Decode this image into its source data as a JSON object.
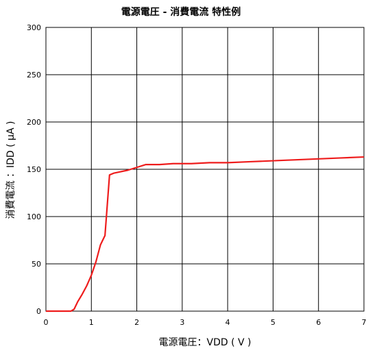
{
  "chart_data": {
    "type": "line",
    "title": "電源電圧 - 消費電流 特性例",
    "xlabel": "電源電圧：VDD ( V )",
    "ylabel": "消費電流 ：IDD ( μA )",
    "xlim": [
      0,
      7
    ],
    "ylim": [
      0,
      300
    ],
    "xticks": [
      "0",
      "1",
      "2",
      "3",
      "4",
      "5",
      "6",
      "7"
    ],
    "yticks": [
      "0",
      "50",
      "100",
      "150",
      "200",
      "250",
      "300"
    ],
    "grid": true,
    "series": [
      {
        "color": "#ee1c1c",
        "x": [
          0,
          0.55,
          0.62,
          0.7,
          0.8,
          0.9,
          1.0,
          1.1,
          1.2,
          1.3,
          1.4,
          1.5,
          1.6,
          1.8,
          2.0,
          2.2,
          2.5,
          2.8,
          3.2,
          3.6,
          4.0,
          4.5,
          5.0,
          5.5,
          6.0,
          6.5,
          7.0
        ],
        "y": [
          0,
          0,
          2,
          10,
          18,
          27,
          38,
          52,
          70,
          80,
          144,
          146,
          147,
          149,
          152,
          155,
          155,
          156,
          156,
          157,
          157,
          158,
          159,
          160,
          161,
          162,
          163
        ]
      }
    ]
  }
}
